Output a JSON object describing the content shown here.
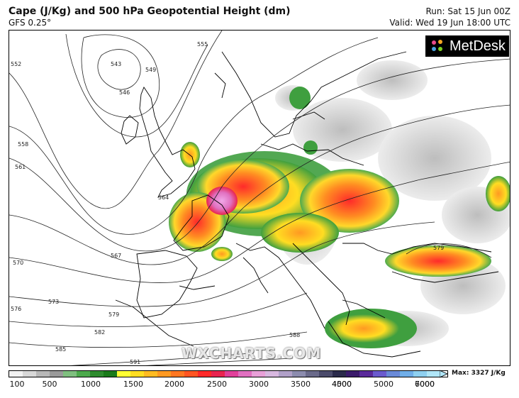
{
  "header": {
    "title": "Cape (J/Kg) and 500 hPa Geopotential Height (dm)",
    "model": "GFS 0.25°",
    "run": "Run: Sat 15 Jun 00Z",
    "valid": "Valid: Wed 19 Jun 18:00 UTC"
  },
  "logo": {
    "text": "MetDesk",
    "icon": "metdesk-logo-icon"
  },
  "watermark": "WXCHARTS.COM",
  "contours": {
    "labels": [
      "552",
      "543",
      "549",
      "546",
      "555",
      "558",
      "561",
      "564",
      "567",
      "570",
      "573",
      "576",
      "579",
      "582",
      "585",
      "588",
      "591",
      "579"
    ]
  },
  "colorbar": {
    "ticks": [
      "100",
      "500",
      "1000",
      "1500",
      "2000",
      "2500",
      "3000",
      "3500",
      "4000",
      "4500",
      "5000",
      "6000",
      "7000"
    ],
    "max_label": "Max: 3327 J/Kg",
    "colors": [
      "#f2f2f2",
      "#d8d8d8",
      "#b8b8b8",
      "#9a9a9a",
      "#7fbf7f",
      "#4daa4d",
      "#2e8b2e",
      "#1a7a1a",
      "#ffff33",
      "#ffdd22",
      "#ffbb22",
      "#ff9922",
      "#ff7722",
      "#ff5522",
      "#ff2a2a",
      "#e8244f",
      "#e0409a",
      "#e070c0",
      "#e8a0d8",
      "#d8b8e0",
      "#b0a0c8",
      "#8c8cae",
      "#6a6a8a",
      "#4a4a6a",
      "#2a2a4a",
      "#3a1a6a",
      "#5a2a9a",
      "#6a5acd",
      "#6a8ad8",
      "#70aee8",
      "#8fd0f0",
      "#b0e6f8"
    ]
  }
}
